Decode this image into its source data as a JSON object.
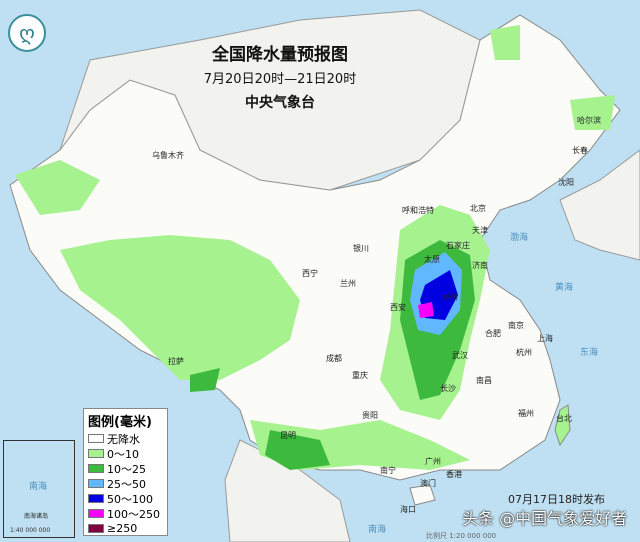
{
  "title": "全国降水量预报图",
  "period": "7月20日20时—21日20时",
  "issuer": "中央气象台",
  "logo_icon": "cma-logo-icon",
  "cities": [
    {
      "name": "乌鲁木齐"
    },
    {
      "name": "哈尔滨"
    },
    {
      "name": "长春"
    },
    {
      "name": "沈阳"
    },
    {
      "name": "呼和浩特"
    },
    {
      "name": "北京"
    },
    {
      "name": "天津"
    },
    {
      "name": "石家庄"
    },
    {
      "name": "太原"
    },
    {
      "name": "济南"
    },
    {
      "name": "银川"
    },
    {
      "name": "西宁"
    },
    {
      "name": "兰州"
    },
    {
      "name": "西安"
    },
    {
      "name": "郑州"
    },
    {
      "name": "合肥"
    },
    {
      "name": "南京"
    },
    {
      "name": "上海"
    },
    {
      "name": "杭州"
    },
    {
      "name": "武汉"
    },
    {
      "name": "成都"
    },
    {
      "name": "重庆"
    },
    {
      "name": "长沙"
    },
    {
      "name": "南昌"
    },
    {
      "name": "福州"
    },
    {
      "name": "台北"
    },
    {
      "name": "贵阳"
    },
    {
      "name": "昆明"
    },
    {
      "name": "南宁"
    },
    {
      "name": "广州"
    },
    {
      "name": "香港"
    },
    {
      "name": "澳门"
    },
    {
      "name": "海口"
    },
    {
      "name": "拉萨"
    }
  ],
  "seas": [
    "渤海",
    "黄海",
    "东海",
    "南海"
  ],
  "legend": {
    "title": "图例(毫米)",
    "items": [
      {
        "label": "无降水",
        "color": "#ffffff"
      },
      {
        "label": "0～10",
        "color": "#a6f28f"
      },
      {
        "label": "10～25",
        "color": "#3dba3d"
      },
      {
        "label": "25～50",
        "color": "#61b8ff"
      },
      {
        "label": "50～100",
        "color": "#0000e1"
      },
      {
        "label": "100～250",
        "color": "#fa00fa"
      },
      {
        "label": "≥250",
        "color": "#800040"
      }
    ]
  },
  "inset": {
    "sea": "南海",
    "islands": "南海诸岛",
    "scale": "1:40 000 000"
  },
  "published": "07月17日18时发布",
  "watermark": "头条 @中国气象爱好者",
  "scale_note": "比例尺 1:20 000 000"
}
